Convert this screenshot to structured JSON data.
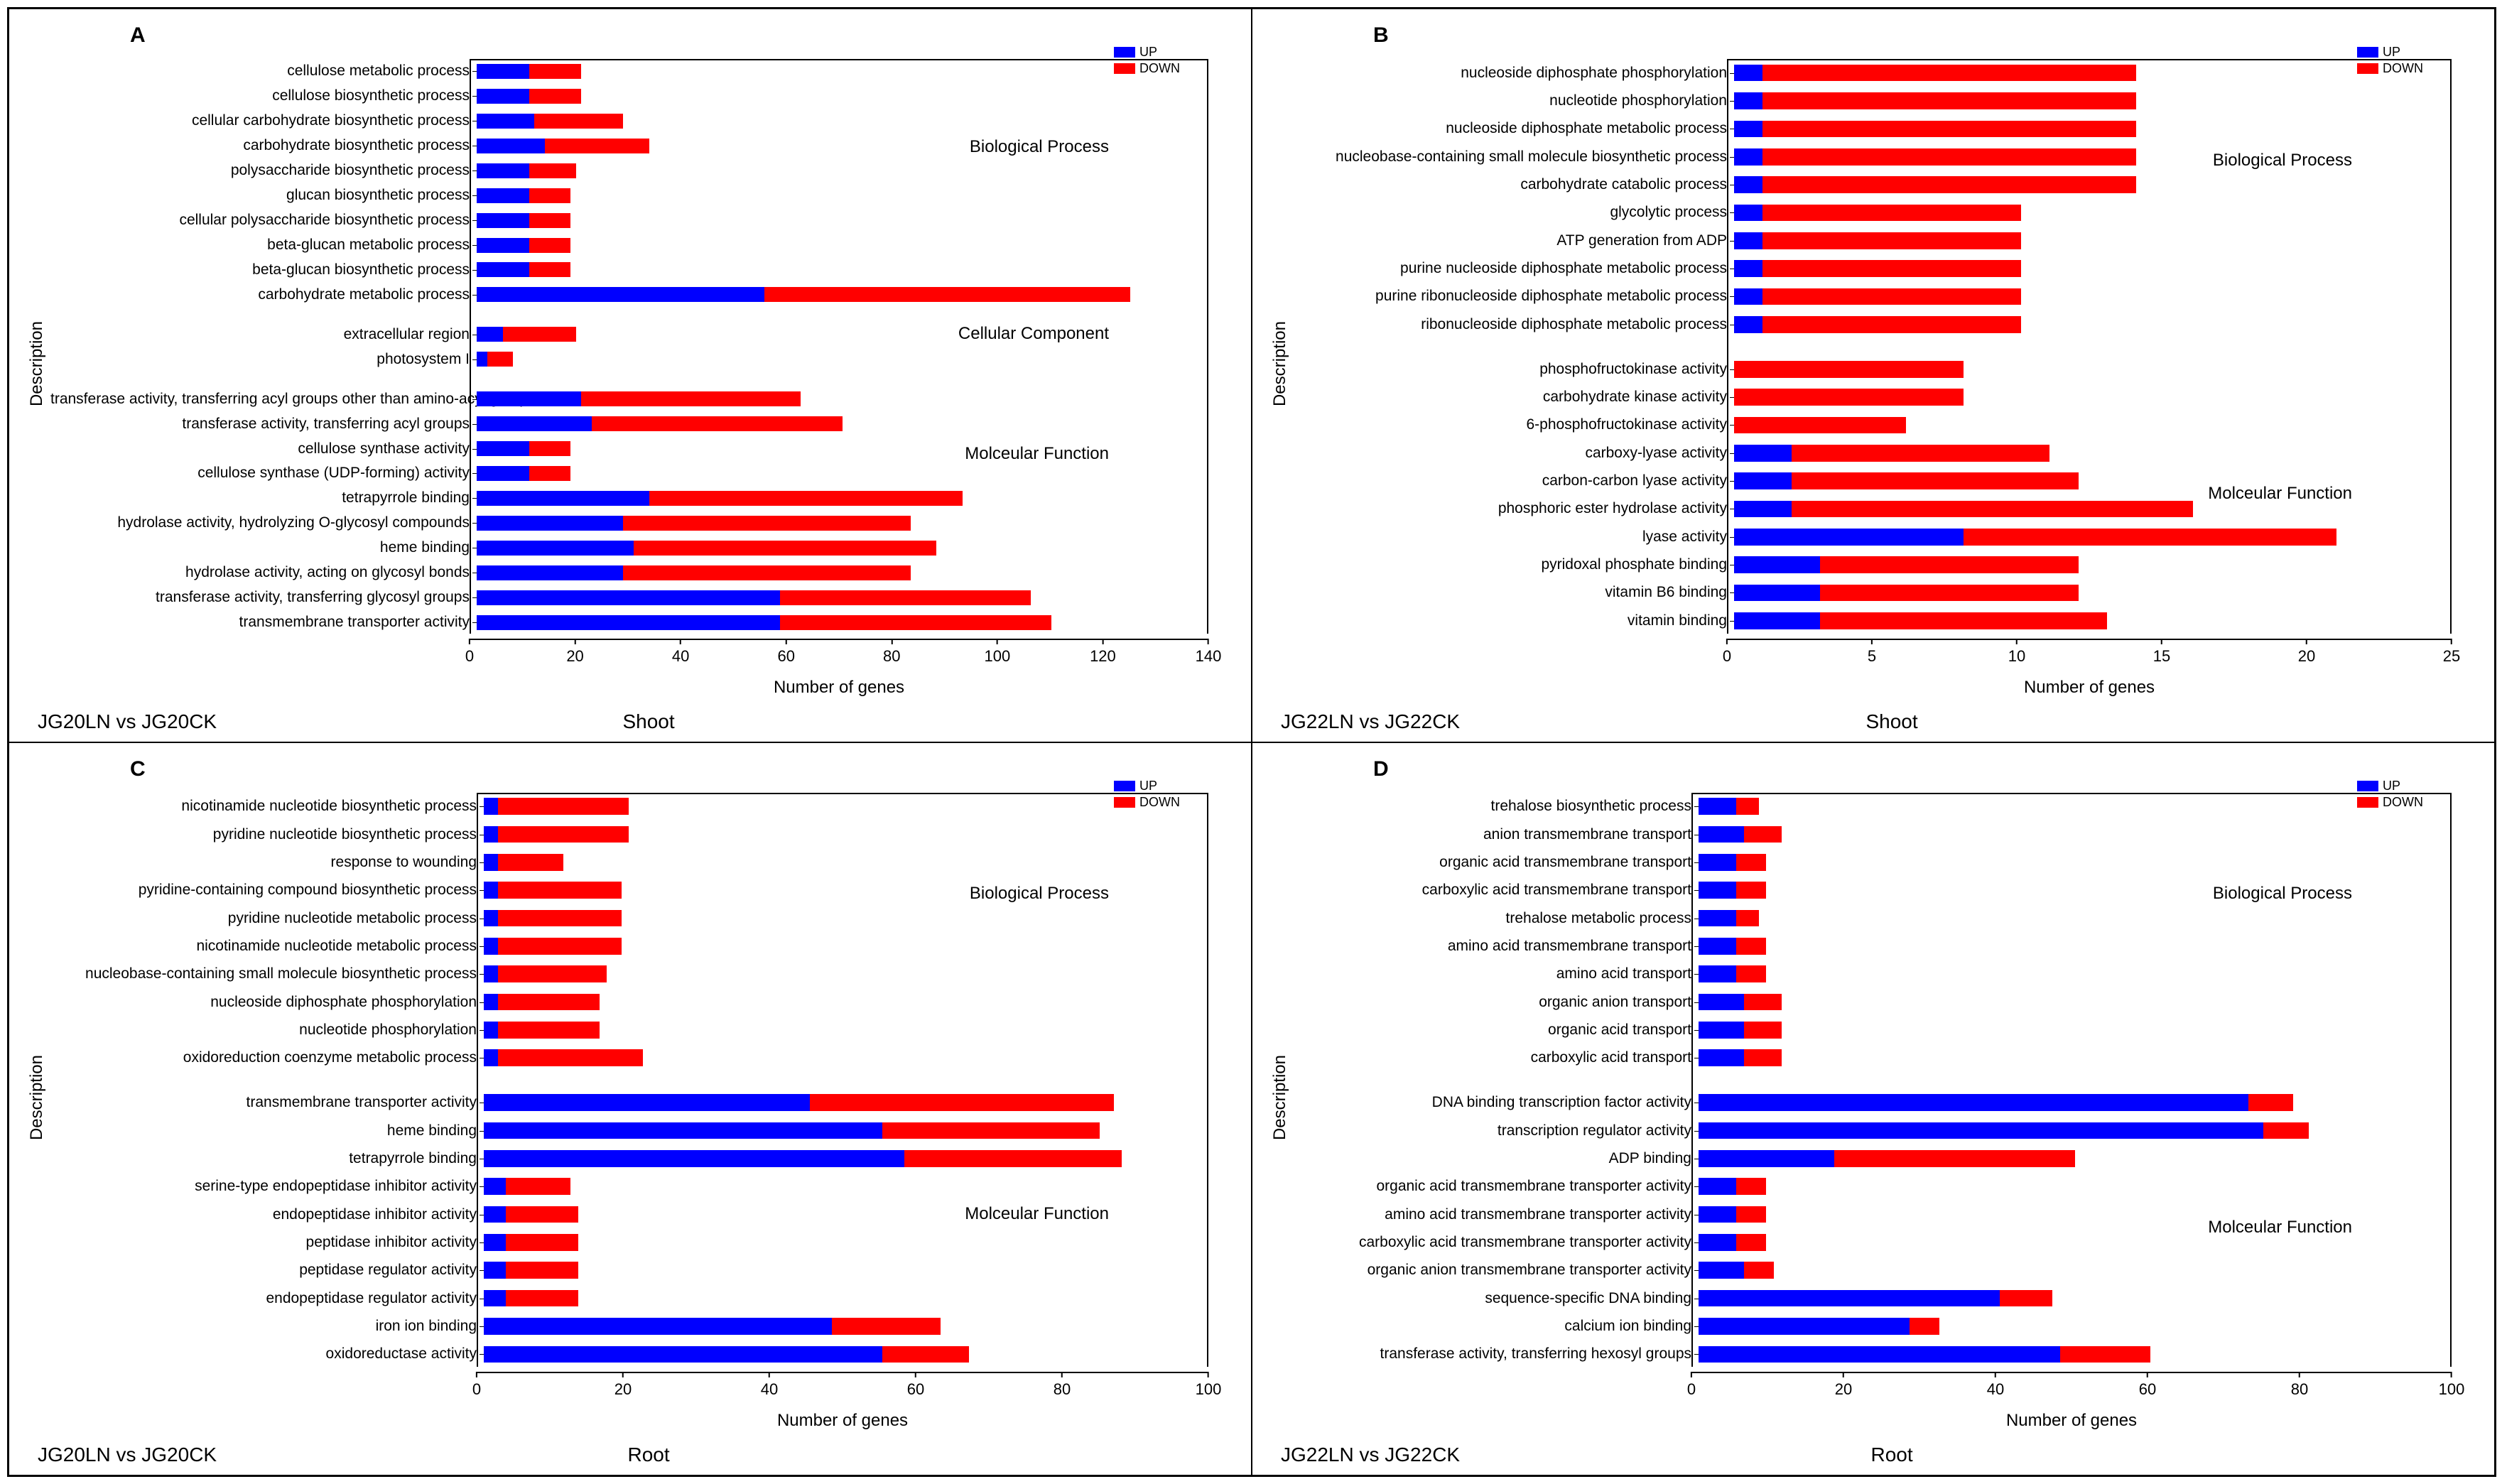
{
  "colors": {
    "up": "#0000ff",
    "down": "#ff0000",
    "axis": "#000000",
    "background": "#ffffff"
  },
  "legend": {
    "up_label": "UP",
    "down_label": "DOWN"
  },
  "axis": {
    "y_label": "Description",
    "x_label": "Number of genes"
  },
  "panels": [
    {
      "letter": "A",
      "comparison": "JG20LN vs JG20CK",
      "tissue": "Shoot",
      "xlim": 140,
      "xtick_step": 20,
      "label_width": 590,
      "sections": [
        {
          "name": "Biological Process",
          "pos_pct": 16
        },
        {
          "name": "Cellular Component",
          "pos_pct": 44
        },
        {
          "name": "Molceular Function",
          "pos_pct": 62
        }
      ],
      "rows": [
        {
          "label": "cellulose metabolic process",
          "up": 10,
          "down": 10
        },
        {
          "label": "cellulose biosynthetic process",
          "up": 10,
          "down": 10
        },
        {
          "label": "cellular carbohydrate biosynthetic process",
          "up": 11,
          "down": 17
        },
        {
          "label": "carbohydrate biosynthetic process",
          "up": 13,
          "down": 20
        },
        {
          "label": "polysaccharide biosynthetic process",
          "up": 10,
          "down": 9
        },
        {
          "label": "glucan biosynthetic process",
          "up": 10,
          "down": 8
        },
        {
          "label": "cellular polysaccharide biosynthetic process",
          "up": 10,
          "down": 8
        },
        {
          "label": "beta-glucan metabolic process",
          "up": 10,
          "down": 8
        },
        {
          "label": "beta-glucan biosynthetic process",
          "up": 10,
          "down": 8
        },
        {
          "label": "carbohydrate metabolic process",
          "up": 55,
          "down": 70
        },
        {
          "spacer": true
        },
        {
          "label": "extracellular region",
          "up": 5,
          "down": 14
        },
        {
          "label": "photosystem I",
          "up": 2,
          "down": 5
        },
        {
          "spacer": true
        },
        {
          "label": "transferase activity, transferring acyl groups other than amino-acyl groups",
          "up": 20,
          "down": 42
        },
        {
          "label": "transferase activity, transferring acyl groups",
          "up": 22,
          "down": 48
        },
        {
          "label": "cellulose synthase activity",
          "up": 10,
          "down": 8
        },
        {
          "label": "cellulose synthase (UDP-forming) activity",
          "up": 10,
          "down": 8
        },
        {
          "label": "tetrapyrrole binding",
          "up": 33,
          "down": 60
        },
        {
          "label": "hydrolase activity, hydrolyzing O-glycosyl compounds",
          "up": 28,
          "down": 55
        },
        {
          "label": "heme binding",
          "up": 30,
          "down": 58
        },
        {
          "label": "hydrolase activity, acting on glycosyl bonds",
          "up": 28,
          "down": 55
        },
        {
          "label": "transferase activity, transferring glycosyl groups",
          "up": 58,
          "down": 48
        },
        {
          "label": "transmembrane transporter activity",
          "up": 58,
          "down": 52
        }
      ]
    },
    {
      "letter": "B",
      "comparison": "JG22LN vs JG22CK",
      "tissue": "Shoot",
      "xlim": 25,
      "xtick_step": 5,
      "label_width": 610,
      "sections": [
        {
          "name": "Biological Process",
          "pos_pct": 18
        },
        {
          "name": "Molceular Function",
          "pos_pct": 68
        }
      ],
      "rows": [
        {
          "label": "nucleoside diphosphate phosphorylation",
          "up": 1,
          "down": 13
        },
        {
          "label": "nucleotide phosphorylation",
          "up": 1,
          "down": 13
        },
        {
          "label": "nucleoside diphosphate metabolic process",
          "up": 1,
          "down": 13
        },
        {
          "label": "nucleobase-containing small molecule biosynthetic process",
          "up": 1,
          "down": 13
        },
        {
          "label": "carbohydrate catabolic process",
          "up": 1,
          "down": 13
        },
        {
          "label": "glycolytic process",
          "up": 1,
          "down": 9
        },
        {
          "label": "ATP generation from ADP",
          "up": 1,
          "down": 9
        },
        {
          "label": "purine nucleoside diphosphate metabolic process",
          "up": 1,
          "down": 9
        },
        {
          "label": "purine ribonucleoside diphosphate metabolic process",
          "up": 1,
          "down": 9
        },
        {
          "label": "ribonucleoside diphosphate metabolic process",
          "up": 1,
          "down": 9
        },
        {
          "spacer": true
        },
        {
          "label": "phosphofructokinase activity",
          "up": 0,
          "down": 8
        },
        {
          "label": "carbohydrate kinase activity",
          "up": 0,
          "down": 8
        },
        {
          "label": "6-phosphofructokinase activity",
          "up": 0,
          "down": 6
        },
        {
          "label": "carboxy-lyase activity",
          "up": 2,
          "down": 9
        },
        {
          "label": "carbon-carbon lyase activity",
          "up": 2,
          "down": 10
        },
        {
          "label": "phosphoric ester hydrolase activity",
          "up": 2,
          "down": 14
        },
        {
          "label": "lyase activity",
          "up": 8,
          "down": 13
        },
        {
          "label": "pyridoxal phosphate binding",
          "up": 3,
          "down": 9
        },
        {
          "label": "vitamin B6 binding",
          "up": 3,
          "down": 9
        },
        {
          "label": "vitamin binding",
          "up": 3,
          "down": 10
        }
      ]
    },
    {
      "letter": "C",
      "comparison": "JG20LN vs JG20CK",
      "tissue": "Root",
      "xlim": 100,
      "xtick_step": 20,
      "label_width": 600,
      "sections": [
        {
          "name": "Biological Process",
          "pos_pct": 18
        },
        {
          "name": "Molceular Function",
          "pos_pct": 66
        }
      ],
      "rows": [
        {
          "label": "nicotinamide nucleotide biosynthetic process",
          "up": 2,
          "down": 18
        },
        {
          "label": "pyridine nucleotide biosynthetic process",
          "up": 2,
          "down": 18
        },
        {
          "label": "response to wounding",
          "up": 2,
          "down": 9
        },
        {
          "label": "pyridine-containing compound biosynthetic process",
          "up": 2,
          "down": 17
        },
        {
          "label": "pyridine nucleotide metabolic process",
          "up": 2,
          "down": 17
        },
        {
          "label": "nicotinamide nucleotide metabolic process",
          "up": 2,
          "down": 17
        },
        {
          "label": "nucleobase-containing small molecule biosynthetic process",
          "up": 2,
          "down": 15
        },
        {
          "label": "nucleoside diphosphate phosphorylation",
          "up": 2,
          "down": 14
        },
        {
          "label": "nucleotide phosphorylation",
          "up": 2,
          "down": 14
        },
        {
          "label": "oxidoreduction coenzyme metabolic process",
          "up": 2,
          "down": 20
        },
        {
          "spacer": true
        },
        {
          "label": "transmembrane transporter activity",
          "up": 45,
          "down": 42
        },
        {
          "label": "heme binding",
          "up": 55,
          "down": 30
        },
        {
          "label": "tetrapyrrole binding",
          "up": 58,
          "down": 30
        },
        {
          "label": "serine-type endopeptidase inhibitor activity",
          "up": 3,
          "down": 9
        },
        {
          "label": "endopeptidase inhibitor activity",
          "up": 3,
          "down": 10
        },
        {
          "label": "peptidase inhibitor activity",
          "up": 3,
          "down": 10
        },
        {
          "label": "peptidase regulator activity",
          "up": 3,
          "down": 10
        },
        {
          "label": "endopeptidase regulator activity",
          "up": 3,
          "down": 10
        },
        {
          "label": "iron ion binding",
          "up": 48,
          "down": 15
        },
        {
          "label": "oxidoreductase activity",
          "up": 55,
          "down": 12
        }
      ]
    },
    {
      "letter": "D",
      "comparison": "JG22LN vs JG22CK",
      "tissue": "Root",
      "xlim": 100,
      "xtick_step": 20,
      "label_width": 560,
      "sections": [
        {
          "name": "Biological Process",
          "pos_pct": 18
        },
        {
          "name": "Molceular Function",
          "pos_pct": 68
        }
      ],
      "rows": [
        {
          "label": "trehalose biosynthetic process",
          "up": 5,
          "down": 3
        },
        {
          "label": "anion transmembrane transport",
          "up": 6,
          "down": 5
        },
        {
          "label": "organic acid transmembrane transport",
          "up": 5,
          "down": 4
        },
        {
          "label": "carboxylic acid transmembrane transport",
          "up": 5,
          "down": 4
        },
        {
          "label": "trehalose metabolic process",
          "up": 5,
          "down": 3
        },
        {
          "label": "amino acid transmembrane transport",
          "up": 5,
          "down": 4
        },
        {
          "label": "amino acid transport",
          "up": 5,
          "down": 4
        },
        {
          "label": "organic anion transport",
          "up": 6,
          "down": 5
        },
        {
          "label": "organic acid transport",
          "up": 6,
          "down": 5
        },
        {
          "label": "carboxylic acid transport",
          "up": 6,
          "down": 5
        },
        {
          "spacer": true
        },
        {
          "label": "DNA binding transcription factor activity",
          "up": 73,
          "down": 6
        },
        {
          "label": "transcription regulator activity",
          "up": 75,
          "down": 6
        },
        {
          "label": "ADP binding",
          "up": 18,
          "down": 32
        },
        {
          "label": "organic acid transmembrane transporter activity",
          "up": 5,
          "down": 4
        },
        {
          "label": "amino acid transmembrane transporter activity",
          "up": 5,
          "down": 4
        },
        {
          "label": "carboxylic acid transmembrane transporter activity",
          "up": 5,
          "down": 4
        },
        {
          "label": "organic anion transmembrane transporter activity",
          "up": 6,
          "down": 4
        },
        {
          "label": "sequence-specific DNA binding",
          "up": 40,
          "down": 7
        },
        {
          "label": "calcium ion binding",
          "up": 28,
          "down": 4
        },
        {
          "label": "transferase activity, transferring hexosyl groups",
          "up": 48,
          "down": 12
        }
      ]
    }
  ]
}
